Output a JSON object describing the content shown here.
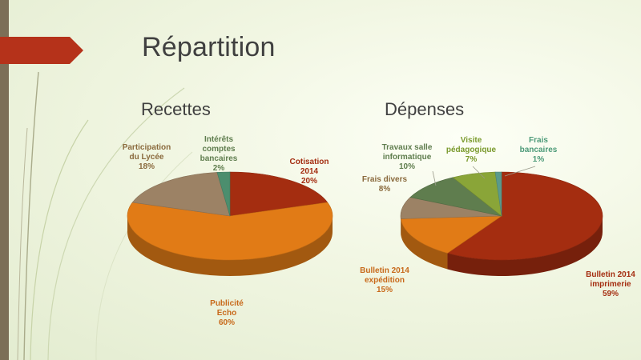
{
  "slide": {
    "title": "Répartition"
  },
  "colors": {
    "red": "#a42d10",
    "orange": "#e17b16",
    "tan": "#9c8265",
    "teal": "#4c8e6e",
    "dkgreen": "#5f7d4e",
    "olive": "#8aa538",
    "lteal": "#5a9a8c",
    "labelBrown": "#8a6a3d",
    "labelGreen": "#6e8a2c"
  },
  "chart_data": [
    {
      "type": "pie",
      "title": "Recettes",
      "slices": [
        {
          "name_lines": [
            "Cotisation",
            "2014"
          ],
          "value": 20,
          "pct_label": "20%",
          "color": "#a42d10",
          "label_color": "#a42d10"
        },
        {
          "name_lines": [
            "Publicité",
            "Echo"
          ],
          "value": 60,
          "pct_label": "60%",
          "color": "#e17b16",
          "label_color": "#c8691a"
        },
        {
          "name_lines": [
            "Participation",
            "du Lycée"
          ],
          "value": 18,
          "pct_label": "18%",
          "color": "#9c8265",
          "label_color": "#8a6a3d"
        },
        {
          "name_lines": [
            "Intérêts",
            "comptes",
            "bancaires"
          ],
          "value": 2,
          "pct_label": "2%",
          "color": "#4c8e6e",
          "label_color": "#5f7d4e"
        }
      ]
    },
    {
      "type": "pie",
      "title": "Dépenses",
      "slices": [
        {
          "name_lines": [
            "Bulletin 2014",
            "imprimerie"
          ],
          "value": 59,
          "pct_label": "59%",
          "color": "#a42d10",
          "label_color": "#a42d10"
        },
        {
          "name_lines": [
            "Bulletin 2014",
            "expédition"
          ],
          "value": 15,
          "pct_label": "15%",
          "color": "#e17b16",
          "label_color": "#c8691a"
        },
        {
          "name_lines": [
            "Frais divers"
          ],
          "value": 8,
          "pct_label": "8%",
          "color": "#9c8265",
          "label_color": "#8a6a3d"
        },
        {
          "name_lines": [
            "Travaux salle",
            "informatique"
          ],
          "value": 10,
          "pct_label": "10%",
          "color": "#5f7d4e",
          "label_color": "#5f7d4e"
        },
        {
          "name_lines": [
            "Visite",
            "pédagogique"
          ],
          "value": 7,
          "pct_label": "7%",
          "color": "#8aa538",
          "label_color": "#7a9a2c"
        },
        {
          "name_lines": [
            "Frais",
            "bancaires"
          ],
          "value": 1,
          "pct_label": "1%",
          "color": "#5a9a8c",
          "label_color": "#4c9a78"
        }
      ]
    }
  ]
}
